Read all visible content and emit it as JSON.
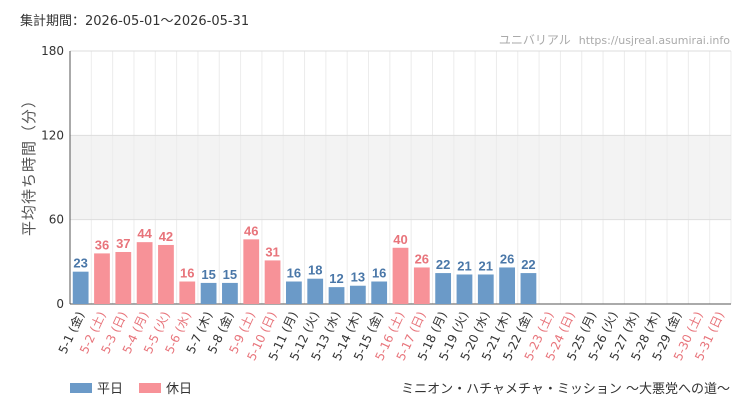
{
  "header": {
    "period": "集計期間：2026-05-01～2026-05-31",
    "site_name": "ユニバリアル",
    "site_url": "https://usjreal.asumirai.info"
  },
  "attraction": "ミニオン・ハチャメチャ・ミッション ～大悪党への道～",
  "legend": {
    "weekday": "平日",
    "holiday": "休日"
  },
  "colors": {
    "weekday": "#6b9ac8",
    "holiday": "#f79298",
    "weekday_text": "#4a77a8",
    "holiday_text": "#e8747b"
  },
  "chart_data": {
    "type": "bar",
    "ylabel": "平均待ち時間（分）",
    "ylim": [
      0,
      180
    ],
    "yticks": [
      0,
      60,
      120,
      180
    ],
    "grid": true,
    "legend_position": "bottom-left",
    "categories": [
      "5-1 (金)",
      "5-2 (土)",
      "5-3 (日)",
      "5-4 (月)",
      "5-5 (火)",
      "5-6 (水)",
      "5-7 (木)",
      "5-8 (金)",
      "5-9 (土)",
      "5-10 (日)",
      "5-11 (月)",
      "5-12 (火)",
      "5-13 (水)",
      "5-14 (木)",
      "5-15 (金)",
      "5-16 (土)",
      "5-17 (日)",
      "5-18 (月)",
      "5-19 (火)",
      "5-20 (水)",
      "5-21 (木)",
      "5-22 (金)",
      "5-23 (土)",
      "5-24 (日)",
      "5-25 (月)",
      "5-26 (火)",
      "5-27 (水)",
      "5-28 (木)",
      "5-29 (金)",
      "5-30 (土)",
      "5-31 (日)"
    ],
    "day_type": [
      "weekday",
      "holiday",
      "holiday",
      "holiday",
      "holiday",
      "holiday",
      "weekday",
      "weekday",
      "holiday",
      "holiday",
      "weekday",
      "weekday",
      "weekday",
      "weekday",
      "weekday",
      "holiday",
      "holiday",
      "weekday",
      "weekday",
      "weekday",
      "weekday",
      "weekday",
      "holiday",
      "holiday",
      "weekday",
      "weekday",
      "weekday",
      "weekday",
      "weekday",
      "holiday",
      "holiday"
    ],
    "values": [
      23,
      36,
      37,
      44,
      42,
      16,
      15,
      15,
      46,
      31,
      16,
      18,
      12,
      13,
      16,
      40,
      26,
      22,
      21,
      21,
      26,
      22,
      null,
      null,
      null,
      null,
      null,
      null,
      null,
      null,
      null
    ]
  }
}
